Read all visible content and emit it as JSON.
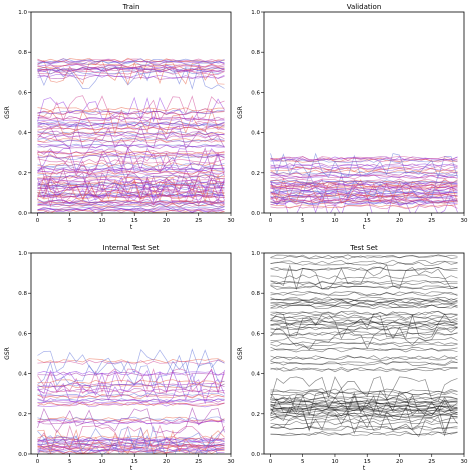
{
  "chart_data": [
    {
      "type": "line",
      "title": "Train",
      "xlabel": "t",
      "ylabel": "GSR",
      "xlim": [
        -1,
        30
      ],
      "ylim": [
        0.0,
        1.0
      ],
      "xticks": [
        "0",
        "5",
        "10",
        "15",
        "20",
        "25",
        "30"
      ],
      "yticks": [
        "0.0",
        "0.2",
        "0.4",
        "0.6",
        "0.8",
        "1.0"
      ],
      "grid": false,
      "colors": [
        "#8a2be2",
        "#cc3b8e",
        "#e8573a",
        "#5a6bd8",
        "#9b1fa5"
      ],
      "series_levels": [
        0.01,
        0.02,
        0.04,
        0.05,
        0.06,
        0.08,
        0.09,
        0.1,
        0.11,
        0.12,
        0.13,
        0.14,
        0.15,
        0.16,
        0.18,
        0.2,
        0.22,
        0.24,
        0.26,
        0.28,
        0.3,
        0.33,
        0.36,
        0.38,
        0.4,
        0.42,
        0.44,
        0.45,
        0.47,
        0.5,
        0.52,
        0.68,
        0.7,
        0.71,
        0.72,
        0.73,
        0.75,
        0.76
      ]
    },
    {
      "type": "line",
      "title": "Validation",
      "xlabel": "t",
      "ylabel": "GSR",
      "xlim": [
        -1,
        30
      ],
      "ylim": [
        0.0,
        1.0
      ],
      "xticks": [
        "0",
        "5",
        "10",
        "15",
        "20",
        "25",
        "30"
      ],
      "yticks": [
        "0.0",
        "0.2",
        "0.4",
        "0.6",
        "0.8",
        "1.0"
      ],
      "grid": false,
      "colors": [
        "#8a2be2",
        "#cc3b8e",
        "#e8573a",
        "#5a6bd8",
        "#9b1fa5"
      ],
      "series_levels": [
        0.03,
        0.05,
        0.06,
        0.07,
        0.08,
        0.09,
        0.1,
        0.11,
        0.12,
        0.13,
        0.14,
        0.15,
        0.16,
        0.18,
        0.2,
        0.22,
        0.24,
        0.26,
        0.27
      ]
    },
    {
      "type": "line",
      "title": "Internal Test Set",
      "xlabel": "t",
      "ylabel": "GSR",
      "xlim": [
        -1,
        30
      ],
      "ylim": [
        0.0,
        1.0
      ],
      "xticks": [
        "0",
        "5",
        "10",
        "15",
        "20",
        "25",
        "30"
      ],
      "yticks": [
        "0.0",
        "0.2",
        "0.4",
        "0.6",
        "0.8",
        "1.0"
      ],
      "grid": false,
      "colors": [
        "#8a2be2",
        "#cc3b8e",
        "#e8573a",
        "#5a6bd8",
        "#9b1fa5"
      ],
      "series_levels": [
        0.01,
        0.02,
        0.03,
        0.04,
        0.05,
        0.06,
        0.07,
        0.08,
        0.16,
        0.17,
        0.25,
        0.27,
        0.29,
        0.31,
        0.34,
        0.36,
        0.4,
        0.46
      ]
    },
    {
      "type": "line",
      "title": "Test Set",
      "xlabel": "t",
      "ylabel": "GSR",
      "xlim": [
        -1,
        30
      ],
      "ylim": [
        0.0,
        1.0
      ],
      "xticks": [
        "0",
        "5",
        "10",
        "15",
        "20",
        "25",
        "30"
      ],
      "yticks": [
        "0.0",
        "0.2",
        "0.4",
        "0.6",
        "0.8",
        "1.0"
      ],
      "grid": false,
      "colors": [
        "#000000"
      ],
      "series_levels": [
        0.1,
        0.13,
        0.15,
        0.17,
        0.19,
        0.2,
        0.21,
        0.22,
        0.23,
        0.24,
        0.25,
        0.26,
        0.27,
        0.28,
        0.3,
        0.32,
        0.42,
        0.45,
        0.48,
        0.52,
        0.55,
        0.57,
        0.6,
        0.62,
        0.64,
        0.65,
        0.66,
        0.68,
        0.7,
        0.73,
        0.75,
        0.76,
        0.77,
        0.8,
        0.83,
        0.85,
        0.88,
        0.92,
        0.95,
        0.98
      ]
    }
  ]
}
